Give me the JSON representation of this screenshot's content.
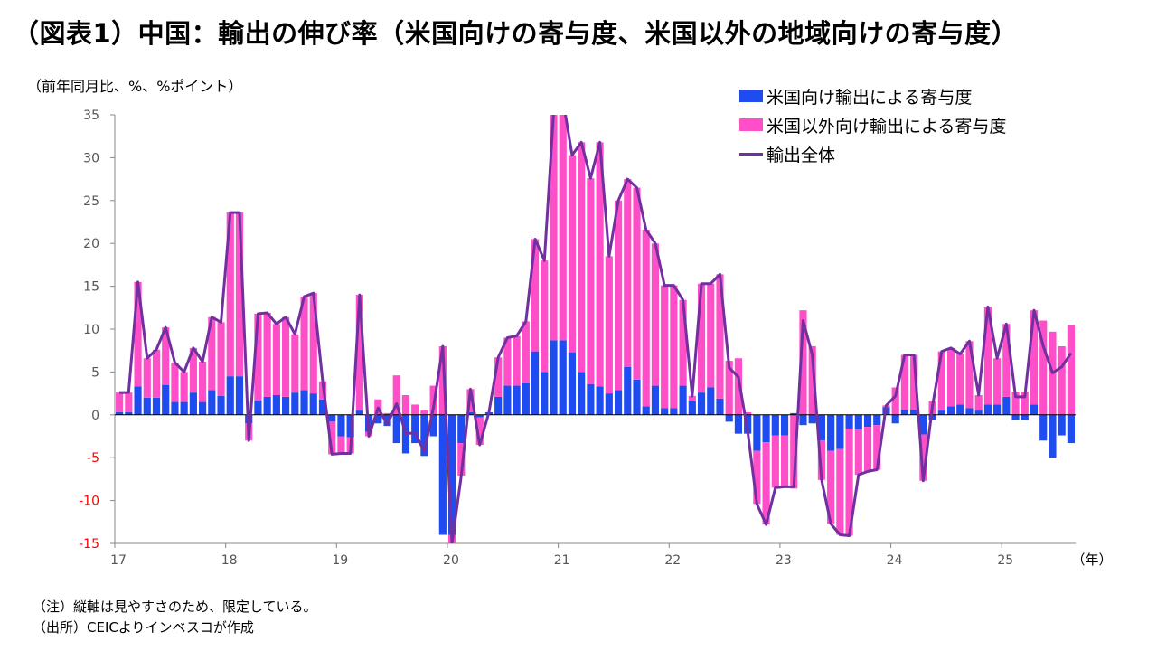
{
  "title": "（図表1）中国：輸出の伸び率（米国向けの寄与度、米国以外の地域向けの寄与度）",
  "unit_label": "（前年同月比、%、%ポイント）",
  "notes": {
    "note": "（注）縦軸は見やすさのため、限定している。",
    "source": "（出所）CEICよりインベスコが作成"
  },
  "colors": {
    "us_bar": "#1f4cf0",
    "other_bar": "#ff4fc8",
    "total_line": "#7030a0",
    "negative_tick": "#ff0000",
    "axis": "#000000"
  },
  "chart_data": {
    "type": "bar",
    "stacked": true,
    "ylim": [
      -15,
      35
    ],
    "yticks": [
      35,
      30,
      25,
      20,
      15,
      10,
      5,
      0,
      -5,
      -10,
      -15
    ],
    "xlabel_unit": "（年）",
    "year_labels": [
      "17",
      "18",
      "19",
      "20",
      "21",
      "22",
      "23",
      "24",
      "25"
    ],
    "legend_position": "top-right",
    "grid": false,
    "series": [
      {
        "name": "米国向け輸出による寄与度",
        "kind": "bar",
        "values": [
          0.3,
          0.3,
          3.3,
          2.0,
          2.0,
          3.5,
          1.5,
          1.5,
          2.6,
          1.5,
          2.9,
          2.2,
          4.5,
          4.5,
          -1.0,
          1.7,
          2.1,
          2.3,
          2.1,
          2.6,
          2.9,
          2.5,
          1.8,
          -0.8,
          -2.5,
          -2.6,
          0.5,
          -2.0,
          -1.0,
          -1.3,
          -3.3,
          -4.5,
          -3.3,
          -4.8,
          -2.5,
          -14.0,
          -14.0,
          -3.3,
          0.3,
          -0.3,
          0.3,
          2.1,
          3.4,
          3.4,
          3.7,
          7.4,
          5.0,
          8.7,
          8.7,
          7.3,
          5.0,
          3.6,
          3.3,
          2.5,
          2.9,
          5.6,
          4.1,
          1.0,
          3.4,
          0.8,
          0.8,
          3.4,
          1.6,
          2.6,
          3.2,
          1.9,
          -0.8,
          -2.2,
          -2.2,
          -4.2,
          -3.2,
          -2.4,
          -2.4,
          0.2,
          -1.2,
          -1.0,
          -3.0,
          -4.2,
          -4.0,
          -1.6,
          -1.7,
          -1.4,
          -1.2,
          0.9,
          -1.0,
          0.6,
          0.6,
          -2.3,
          -0.6,
          0.5,
          1.0,
          1.2,
          0.8,
          0.5,
          1.2,
          1.2,
          2.1,
          -0.6,
          -0.6,
          1.2,
          -3.0,
          -5.0,
          -2.4,
          -3.3
        ]
      },
      {
        "name": "米国以外向け輸出による寄与度",
        "kind": "bar",
        "values": [
          2.3,
          2.3,
          12.2,
          4.6,
          5.6,
          6.7,
          4.6,
          3.5,
          5.2,
          4.7,
          8.5,
          8.6,
          19.1,
          19.1,
          -2.0,
          10.1,
          9.8,
          8.3,
          9.3,
          6.8,
          10.9,
          11.7,
          2.1,
          -3.8,
          -2.0,
          -1.9,
          13.5,
          -0.5,
          1.8,
          0.2,
          4.6,
          2.3,
          1.2,
          0.5,
          3.4,
          8.0,
          -1.0,
          -3.8,
          2.7,
          -3.2,
          0.0,
          4.6,
          5.6,
          5.8,
          7.2,
          13.1,
          13.0,
          26.6,
          28.1,
          23.0,
          26.8,
          24.0,
          28.5,
          16.0,
          22.1,
          21.9,
          22.4,
          20.6,
          16.6,
          14.3,
          14.3,
          10.0,
          0.6,
          12.7,
          12.1,
          14.5,
          6.3,
          6.6,
          0.3,
          -6.2,
          -9.6,
          -6.1,
          -6.0,
          -8.6,
          12.2,
          8.0,
          -4.6,
          -8.5,
          -10.0,
          -12.5,
          -5.3,
          -5.2,
          -5.2,
          0.2,
          3.2,
          6.4,
          6.4,
          -5.4,
          1.6,
          6.9,
          6.8,
          5.9,
          7.8,
          1.8,
          11.4,
          5.4,
          8.5,
          2.7,
          2.7,
          11.0,
          11.0,
          9.7,
          8.0,
          10.5
        ]
      },
      {
        "name": "輸出全体",
        "kind": "line",
        "values": [
          2.6,
          2.6,
          15.5,
          6.6,
          7.6,
          10.2,
          6.1,
          5.0,
          7.8,
          6.2,
          11.4,
          10.8,
          23.6,
          23.6,
          -3.0,
          11.8,
          11.9,
          10.6,
          11.4,
          9.4,
          13.8,
          14.2,
          3.9,
          -4.6,
          -4.5,
          -4.5,
          14.0,
          -2.5,
          0.8,
          -1.1,
          1.3,
          -2.2,
          -2.1,
          -4.3,
          0.9,
          8.0,
          -15.0,
          -7.1,
          3.0,
          -3.5,
          0.3,
          6.7,
          9.0,
          9.2,
          10.9,
          20.5,
          18.0,
          35.3,
          36.8,
          30.3,
          31.8,
          27.6,
          31.8,
          18.5,
          25.0,
          27.5,
          26.5,
          21.6,
          20.0,
          15.1,
          15.1,
          13.4,
          2.2,
          15.3,
          15.3,
          16.4,
          5.5,
          4.4,
          -1.9,
          -10.4,
          -12.8,
          -8.5,
          -8.4,
          -8.4,
          11.0,
          7.0,
          -7.6,
          -12.7,
          -14.0,
          -14.1,
          -7.0,
          -6.6,
          -6.4,
          1.1,
          2.2,
          7.0,
          7.0,
          -7.7,
          1.0,
          7.4,
          7.8,
          7.1,
          8.6,
          2.3,
          12.6,
          6.6,
          10.6,
          2.1,
          2.1,
          12.2,
          8.0,
          4.9,
          5.6,
          7.2
        ]
      }
    ]
  },
  "legend": {
    "us": "米国向け輸出による寄与度",
    "other": "米国以外向け輸出による寄与度",
    "total": "輸出全体"
  }
}
